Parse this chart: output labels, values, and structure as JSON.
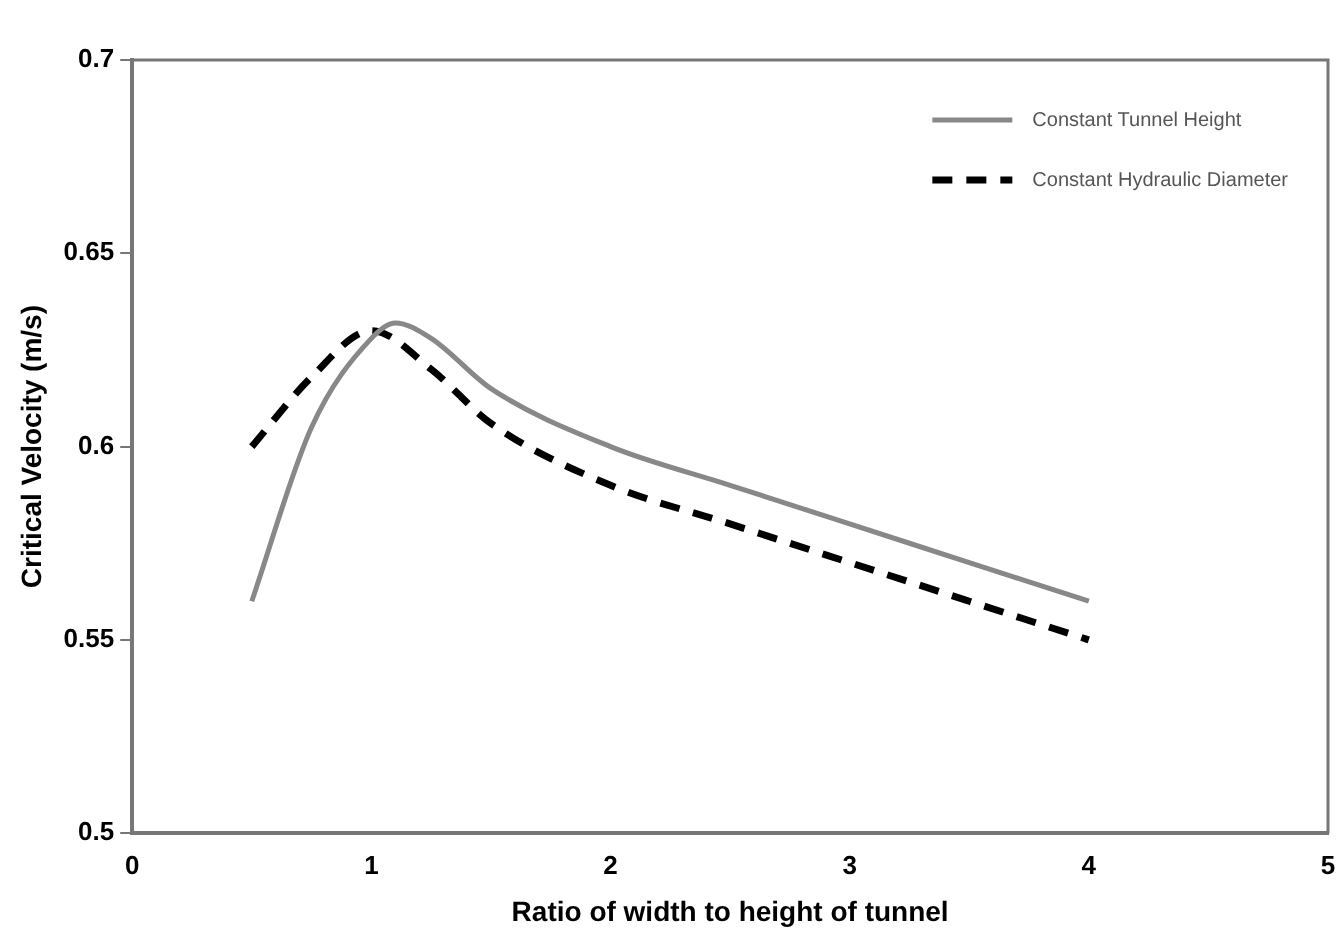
{
  "chart_data": {
    "type": "line",
    "xlabel": "Ratio of width to height of tunnel",
    "ylabel": "Critical Velocity (m/s)",
    "xlim": [
      0,
      5
    ],
    "xticks": [
      0,
      1,
      2,
      3,
      4,
      5
    ],
    "ylim": [
      0.5,
      0.7
    ],
    "yticks": [
      0.5,
      0.55,
      0.6,
      0.65,
      0.7
    ],
    "grid": false,
    "legend": "top right",
    "marker": "none",
    "series": [
      {
        "name": "Constant Tunnel Height",
        "color": "#888888",
        "line_style": "solid",
        "x": [
          0.5,
          0.75,
          1,
          1.1,
          1.25,
          1.5,
          2,
          2.5,
          3,
          3.5,
          4
        ],
        "values": [
          0.56,
          0.605,
          0.628,
          0.632,
          0.628,
          0.615,
          0.6,
          0.59,
          0.58,
          0.57,
          0.56
        ]
      },
      {
        "name": "Constant Hydraulic Diameter",
        "color": "#000000",
        "line_style": "dashed",
        "x": [
          0.5,
          0.75,
          1,
          1.25,
          1.5,
          2,
          2.5,
          3,
          3.5,
          4
        ],
        "values": [
          0.6,
          0.618,
          0.63,
          0.62,
          0.606,
          0.59,
          0.58,
          0.57,
          0.56,
          0.55
        ]
      }
    ]
  }
}
